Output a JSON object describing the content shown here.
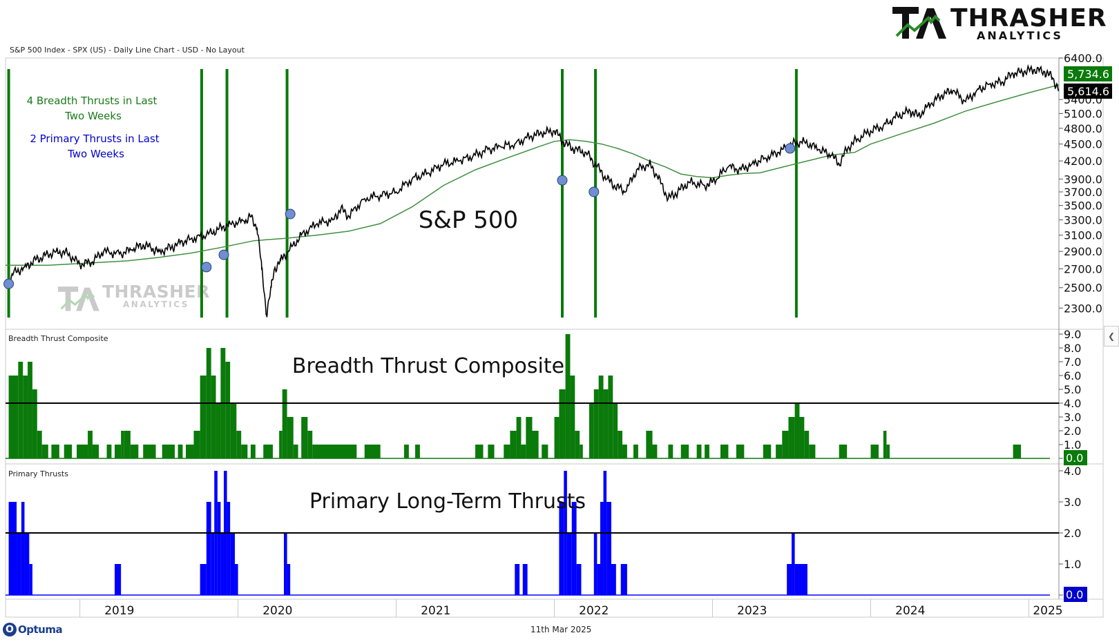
{
  "header": {
    "title": "S&P 500 Index - SPX (US) - Daily Line Chart - USD - No Layout"
  },
  "footer": {
    "date": "11th Mar 2025",
    "vendor": "Optuma",
    "vendor_mark": "O"
  },
  "brand": {
    "wordmark": "THRASHER",
    "sub": "ANALYTICS",
    "colors": {
      "dark": "#111111",
      "green": "#2a8a2a"
    }
  },
  "colors": {
    "price": "#000000",
    "ma": "#3f8f3f",
    "thrust_line": "#0a7a0a",
    "composite_fill": "#0a7a0a",
    "primary_fill": "#0000ff",
    "marker": "#6f8fd0",
    "label_green": "#1a7a1a",
    "label_blue": "#0000cc",
    "badge_green": "#0a7a0a",
    "badge_black": "#000000",
    "badge_blue": "#0000cc"
  },
  "chart_data": [
    {
      "type": "line",
      "panel_label": "",
      "title": "S&P 500",
      "annotations": [
        "4 Breadth Thrusts in Last Two Weeks",
        "2 Primary Thrusts in Last Two Weeks"
      ],
      "y_ticks": [
        2300,
        2500,
        2700,
        2900,
        3100,
        3300,
        3500,
        3700,
        3900,
        4200,
        4500,
        4800,
        5100,
        5400,
        6400
      ],
      "y_tick_labels": [
        "2300.0",
        "2500.0",
        "2700.0",
        "2900.0",
        "3100.0",
        "3300.0",
        "3500.0",
        "3700.0",
        "3900.0",
        "4200.0",
        "4500.0",
        "4800.0",
        "5100.0",
        "5400.0",
        "6400.0"
      ],
      "ylim": [
        2200,
        6400
      ],
      "scale": "log",
      "xlim": [
        2018.53,
        2025.19
      ],
      "series": [
        {
          "name": "",
          "x": [
            2018.53,
            2018.58,
            2018.65,
            2018.72,
            2018.78,
            2018.85,
            2018.92,
            2019.0,
            2019.08,
            2019.15,
            2019.25,
            2019.33,
            2019.4,
            2019.45,
            2019.5,
            2019.58,
            2019.62,
            2019.7,
            2019.8,
            2019.88,
            2019.95,
            2020.04,
            2020.08,
            2020.12,
            2020.15,
            2020.18,
            2020.21,
            2020.23,
            2020.27,
            2020.32,
            2020.4,
            2020.5,
            2020.6,
            2020.65,
            2020.7,
            2020.8,
            2020.9,
            2021.0,
            2021.1,
            2021.2,
            2021.3,
            2021.4,
            2021.5,
            2021.58,
            2021.66,
            2021.75,
            2021.85,
            2021.92,
            2022.0,
            2022.07,
            2022.13,
            2022.2,
            2022.27,
            2022.33,
            2022.38,
            2022.45,
            2022.52,
            2022.6,
            2022.65,
            2022.72,
            2022.78,
            2022.85,
            2022.95,
            2023.0,
            2023.1,
            2023.18,
            2023.25,
            2023.33,
            2023.42,
            2023.5,
            2023.58,
            2023.67,
            2023.75,
            2023.8,
            2023.86,
            2023.92,
            2024.0,
            2024.08,
            2024.17,
            2024.25,
            2024.3,
            2024.38,
            2024.45,
            2024.52,
            2024.6,
            2024.67,
            2024.75,
            2024.83,
            2024.9,
            2024.97,
            2025.03,
            2025.1,
            2025.15,
            2025.19
          ],
          "y": [
            2500,
            2650,
            2720,
            2800,
            2850,
            2900,
            2880,
            2750,
            2780,
            2900,
            2870,
            2920,
            2980,
            2940,
            2900,
            2950,
            3000,
            3050,
            3100,
            3180,
            3250,
            3280,
            3340,
            3200,
            2700,
            2237,
            2500,
            2700,
            2800,
            2900,
            3100,
            3250,
            3300,
            3450,
            3350,
            3600,
            3650,
            3700,
            3900,
            4000,
            4150,
            4200,
            4300,
            4400,
            4450,
            4500,
            4650,
            4700,
            4750,
            4500,
            4400,
            4350,
            4100,
            3900,
            3800,
            3700,
            4050,
            4150,
            3950,
            3600,
            3700,
            3850,
            3800,
            3850,
            4100,
            4050,
            4150,
            4250,
            4350,
            4500,
            4550,
            4400,
            4300,
            4150,
            4450,
            4600,
            4750,
            4850,
            5050,
            5150,
            5050,
            5300,
            5500,
            5600,
            5350,
            5600,
            5750,
            5800,
            6000,
            6050,
            6100,
            6050,
            5900,
            5614.6
          ]
        },
        {
          "name": "",
          "x": [
            2018.53,
            2018.8,
            2019.0,
            2019.3,
            2019.5,
            2019.7,
            2019.9,
            2020.1,
            2020.3,
            2020.5,
            2020.7,
            2020.9,
            2021.1,
            2021.3,
            2021.5,
            2021.7,
            2021.9,
            2022.0,
            2022.1,
            2022.2,
            2022.3,
            2022.4,
            2022.5,
            2022.6,
            2022.7,
            2022.8,
            2022.9,
            2023.0,
            2023.1,
            2023.2,
            2023.3,
            2023.45,
            2023.6,
            2023.75,
            2023.9,
            2024.0,
            2024.2,
            2024.4,
            2024.6,
            2024.8,
            2025.0,
            2025.19
          ],
          "y": [
            2740,
            2740,
            2760,
            2790,
            2830,
            2880,
            2950,
            3030,
            3060,
            3100,
            3150,
            3250,
            3480,
            3800,
            4050,
            4250,
            4450,
            4550,
            4580,
            4550,
            4500,
            4420,
            4320,
            4200,
            4100,
            3980,
            3940,
            3920,
            3960,
            3990,
            4000,
            4100,
            4200,
            4300,
            4350,
            4500,
            4700,
            4900,
            5150,
            5350,
            5550,
            5734.6
          ]
        }
      ],
      "thrust_dates": [
        2018.55,
        2019.77,
        2019.93,
        2020.31,
        2022.05,
        2022.26,
        2023.53
      ],
      "markers": [
        [
          2018.55,
          2540
        ],
        [
          2019.8,
          2720
        ],
        [
          2019.91,
          2860
        ],
        [
          2020.33,
          3380
        ],
        [
          2022.05,
          3880
        ],
        [
          2022.25,
          3700
        ],
        [
          2023.49,
          4420
        ]
      ],
      "last_values": [
        {
          "label": "5,734.6"
        },
        {
          "label": "5,614.6"
        }
      ]
    },
    {
      "type": "area",
      "panel_label": "Breadth Thrust Composite",
      "title": "Breadth Thrust Composite",
      "y_ticks": [
        0,
        1,
        2,
        3,
        4,
        5,
        6,
        7,
        8,
        9
      ],
      "y_tick_labels": [
        "0.0",
        "1.0",
        "2.0",
        "3.0",
        "4.0",
        "5.0",
        "6.0",
        "7.0",
        "8.0",
        "9.0"
      ],
      "ylim": [
        0,
        9
      ],
      "threshold": 4,
      "last_value": {
        "label": "0.0"
      },
      "bars": [
        [
          2018.55,
          2018.61,
          6
        ],
        [
          2018.61,
          2018.64,
          7
        ],
        [
          2018.64,
          2018.67,
          6
        ],
        [
          2018.67,
          2018.7,
          7
        ],
        [
          2018.7,
          2018.73,
          5
        ],
        [
          2018.73,
          2018.76,
          2
        ],
        [
          2018.76,
          2018.8,
          1
        ],
        [
          2018.82,
          2018.87,
          1
        ],
        [
          2018.9,
          2018.95,
          1
        ],
        [
          2018.98,
          2019.05,
          1
        ],
        [
          2019.05,
          2019.08,
          2
        ],
        [
          2019.08,
          2019.12,
          1
        ],
        [
          2019.17,
          2019.2,
          1
        ],
        [
          2019.22,
          2019.26,
          1
        ],
        [
          2019.26,
          2019.28,
          2
        ],
        [
          2019.28,
          2019.32,
          2
        ],
        [
          2019.32,
          2019.37,
          1
        ],
        [
          2019.4,
          2019.48,
          1
        ],
        [
          2019.52,
          2019.6,
          1
        ],
        [
          2019.62,
          2019.65,
          1
        ],
        [
          2019.67,
          2019.72,
          1
        ],
        [
          2019.72,
          2019.76,
          2
        ],
        [
          2019.76,
          2019.8,
          6
        ],
        [
          2019.8,
          2019.83,
          8
        ],
        [
          2019.83,
          2019.86,
          6
        ],
        [
          2019.86,
          2019.89,
          4
        ],
        [
          2019.89,
          2019.92,
          8
        ],
        [
          2019.92,
          2019.95,
          7
        ],
        [
          2019.95,
          2019.99,
          4
        ],
        [
          2019.99,
          2020.02,
          2
        ],
        [
          2020.02,
          2020.06,
          1
        ],
        [
          2020.08,
          2020.11,
          1
        ],
        [
          2020.16,
          2020.22,
          1
        ],
        [
          2020.26,
          2020.28,
          2
        ],
        [
          2020.28,
          2020.31,
          5
        ],
        [
          2020.31,
          2020.35,
          3
        ],
        [
          2020.35,
          2020.38,
          1
        ],
        [
          2020.4,
          2020.44,
          3
        ],
        [
          2020.44,
          2020.47,
          2
        ],
        [
          2020.47,
          2020.75,
          1
        ],
        [
          2020.8,
          2020.9,
          1
        ],
        [
          2021.05,
          2021.08,
          1
        ],
        [
          2021.12,
          2021.15,
          1
        ],
        [
          2021.5,
          2021.55,
          1
        ],
        [
          2021.58,
          2021.62,
          1
        ],
        [
          2021.68,
          2021.72,
          1
        ],
        [
          2021.72,
          2021.76,
          2
        ],
        [
          2021.76,
          2021.79,
          3
        ],
        [
          2021.79,
          2021.82,
          1
        ],
        [
          2021.82,
          2021.86,
          3
        ],
        [
          2021.86,
          2021.9,
          2
        ],
        [
          2021.92,
          2021.96,
          1
        ],
        [
          2022.0,
          2022.03,
          3
        ],
        [
          2022.03,
          2022.07,
          5
        ],
        [
          2022.07,
          2022.1,
          9
        ],
        [
          2022.1,
          2022.13,
          6
        ],
        [
          2022.13,
          2022.16,
          2
        ],
        [
          2022.16,
          2022.18,
          1
        ],
        [
          2022.22,
          2022.25,
          4
        ],
        [
          2022.25,
          2022.28,
          5
        ],
        [
          2022.28,
          2022.31,
          6
        ],
        [
          2022.31,
          2022.34,
          5
        ],
        [
          2022.34,
          2022.37,
          6
        ],
        [
          2022.37,
          2022.4,
          4
        ],
        [
          2022.4,
          2022.43,
          2
        ],
        [
          2022.43,
          2022.46,
          1
        ],
        [
          2022.5,
          2022.53,
          1
        ],
        [
          2022.58,
          2022.62,
          2
        ],
        [
          2022.62,
          2022.65,
          1
        ],
        [
          2022.72,
          2022.75,
          1
        ],
        [
          2022.8,
          2022.85,
          1
        ],
        [
          2022.9,
          2022.93,
          1
        ],
        [
          2022.95,
          2022.98,
          1
        ],
        [
          2023.05,
          2023.1,
          1
        ],
        [
          2023.15,
          2023.2,
          1
        ],
        [
          2023.32,
          2023.37,
          1
        ],
        [
          2023.4,
          2023.44,
          1
        ],
        [
          2023.44,
          2023.48,
          2
        ],
        [
          2023.48,
          2023.52,
          3
        ],
        [
          2023.52,
          2023.55,
          4
        ],
        [
          2023.55,
          2023.58,
          3
        ],
        [
          2023.58,
          2023.61,
          2
        ],
        [
          2023.61,
          2023.65,
          1
        ],
        [
          2023.8,
          2023.85,
          1
        ],
        [
          2024.0,
          2024.05,
          1
        ],
        [
          2024.08,
          2024.1,
          2
        ],
        [
          2024.1,
          2024.12,
          1
        ],
        [
          2024.9,
          2024.95,
          1
        ]
      ]
    },
    {
      "type": "area",
      "panel_label": "Primary Thrusts",
      "title": "Primary Long-Term Thrusts",
      "y_ticks": [
        0,
        1,
        2,
        3,
        4
      ],
      "y_tick_labels": [
        "0.0",
        "1.0",
        "2.0",
        "3.0",
        "4.0"
      ],
      "ylim": [
        0,
        4
      ],
      "threshold": 2,
      "last_value": {
        "label": "0.0"
      },
      "bars": [
        [
          2018.55,
          2018.6,
          3
        ],
        [
          2018.6,
          2018.63,
          2
        ],
        [
          2018.63,
          2018.65,
          3
        ],
        [
          2018.65,
          2018.68,
          2
        ],
        [
          2018.68,
          2018.7,
          1
        ],
        [
          2019.22,
          2019.26,
          1
        ],
        [
          2019.76,
          2019.8,
          1
        ],
        [
          2019.8,
          2019.83,
          3
        ],
        [
          2019.83,
          2019.85,
          2
        ],
        [
          2019.85,
          2019.87,
          4
        ],
        [
          2019.87,
          2019.89,
          3
        ],
        [
          2019.89,
          2019.91,
          2
        ],
        [
          2019.91,
          2019.93,
          4
        ],
        [
          2019.93,
          2019.95,
          3
        ],
        [
          2019.95,
          2019.98,
          2
        ],
        [
          2019.98,
          2020.0,
          1
        ],
        [
          2020.29,
          2020.31,
          2
        ],
        [
          2020.31,
          2020.33,
          1
        ],
        [
          2021.75,
          2021.78,
          1
        ],
        [
          2021.8,
          2021.83,
          1
        ],
        [
          2022.03,
          2022.06,
          3
        ],
        [
          2022.06,
          2022.08,
          4
        ],
        [
          2022.08,
          2022.11,
          2
        ],
        [
          2022.11,
          2022.14,
          3
        ],
        [
          2022.14,
          2022.17,
          1
        ],
        [
          2022.25,
          2022.27,
          2
        ],
        [
          2022.27,
          2022.29,
          1
        ],
        [
          2022.29,
          2022.31,
          3
        ],
        [
          2022.31,
          2022.33,
          4
        ],
        [
          2022.33,
          2022.36,
          3
        ],
        [
          2022.36,
          2022.39,
          1
        ],
        [
          2022.42,
          2022.46,
          1
        ],
        [
          2023.47,
          2023.5,
          1
        ],
        [
          2023.5,
          2023.52,
          2
        ],
        [
          2023.52,
          2023.6,
          1
        ]
      ]
    }
  ],
  "x_axis": {
    "labels": [
      {
        "text": "2019",
        "x": 2019.25
      },
      {
        "text": "2020",
        "x": 2020.25
      },
      {
        "text": "2021",
        "x": 2021.25
      },
      {
        "text": "2022",
        "x": 2022.25
      },
      {
        "text": "2023",
        "x": 2023.25
      },
      {
        "text": "2024",
        "x": 2024.25
      },
      {
        "text": "2025",
        "x": 2025.12
      }
    ],
    "boundaries": [
      2019.0,
      2020.0,
      2021.0,
      2022.0,
      2023.0,
      2024.0,
      2025.0
    ]
  }
}
